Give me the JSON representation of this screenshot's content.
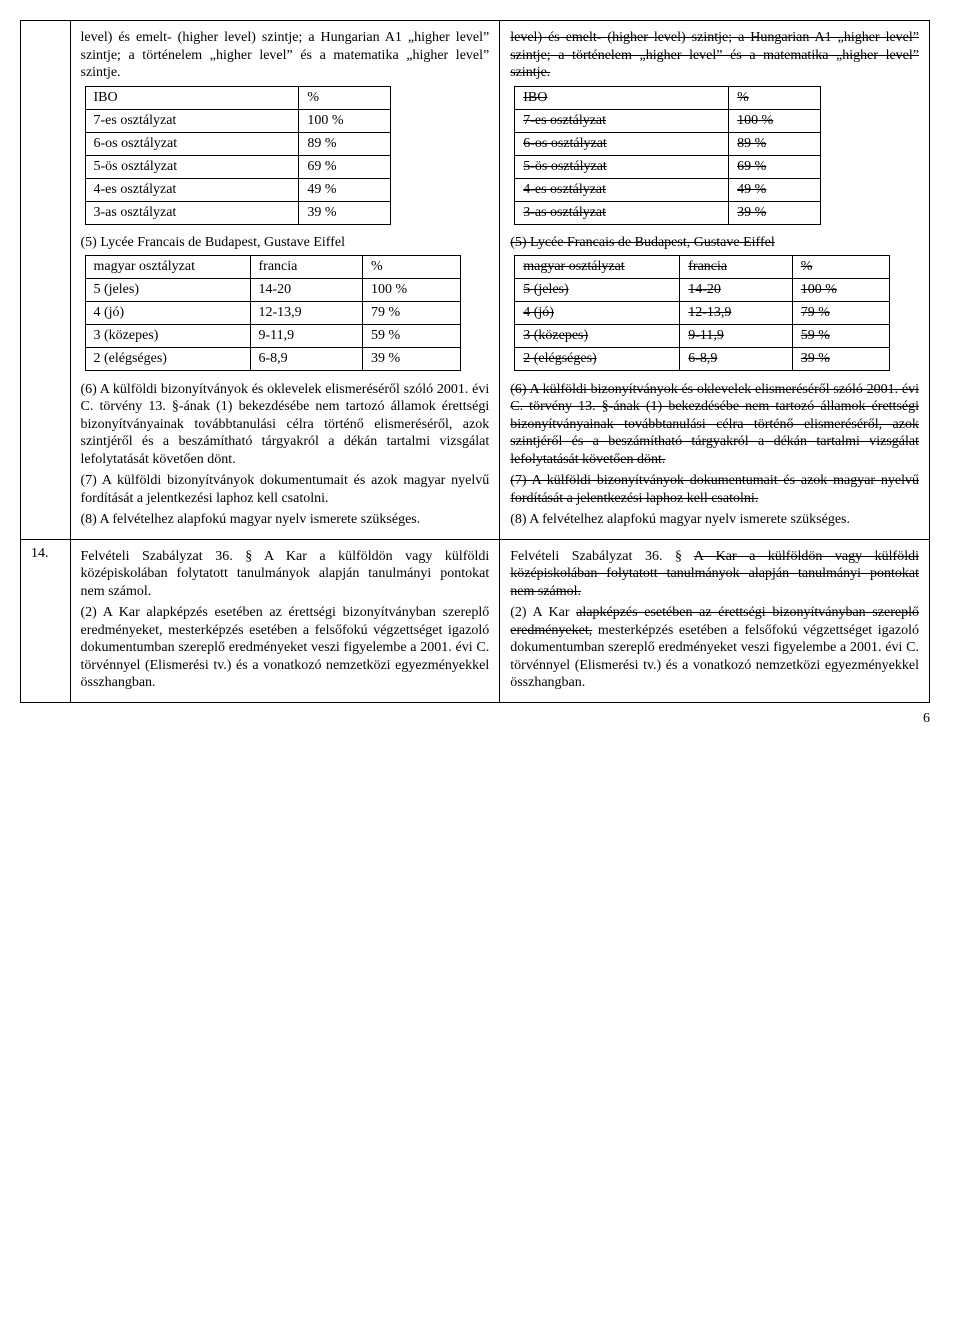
{
  "row1": {
    "para_intro": "level)  és emelt- (higher level) szintje; a Hungarian A1 „higher level” szintje; a történelem „higher level” és a matematika „higher level” szintje.",
    "ibo_rows": [
      [
        "IBO",
        "%"
      ],
      [
        "7-es osztályzat",
        "100 %"
      ],
      [
        "6-os osztályzat",
        "89 %"
      ],
      [
        "5-ös osztályzat",
        "69 %"
      ],
      [
        "4-es osztályzat",
        "49 %"
      ],
      [
        "3-as osztályzat",
        "39 %"
      ]
    ],
    "sect5_title": "(5) Lycée Francais de Budapest, Gustave Eiffel",
    "lycee_rows": [
      [
        "magyar osztályzat",
        "francia",
        "%"
      ],
      [
        "5 (jeles)",
        "14-20",
        "100 %"
      ],
      [
        "4 (jó)",
        "12-13,9",
        "79 %"
      ],
      [
        "3 (közepes)",
        "9-11,9",
        "59 %"
      ],
      [
        "2 (elégséges)",
        "6-8,9",
        "39 %"
      ]
    ],
    "para6": "(6) A külföldi bizonyítványok és oklevelek elismeréséről szóló 2001. évi C. törvény 13. §-ának (1) bekezdésébe nem tartozó államok érettségi bizonyítványainak továbbtanulási célra történő elismeréséről, azok szintjéről és a beszámítható tárgyakról a dékán tartalmi vizsgálat lefolytatását követően dönt.",
    "para7": "(7) A külföldi bizonyítványok dokumentumait és azok magyar nyelvű fordítását a jelentkezési laphoz kell csatolni.",
    "para8": "(8) A felvételhez alapfokú  magyar nyelv ismerete szükséges."
  },
  "row2": {
    "num": "14.",
    "left": {
      "p1": "Felvételi Szabályzat 36. § A Kar a külföldön vagy külföldi középiskolában folytatott tanulmányok alapján tanulmányi pontokat nem számol.",
      "p2": "(2) A Kar alapképzés esetében az érettségi bizonyítványban szereplő eredményeket, mesterképzés esetében a felsőfokú végzettséget igazoló dokumentumban szereplő eredményeket veszi figyelembe a 2001. évi C. törvénnyel (Elismerési tv.) és a vonatkozó nemzetközi egyezményekkel összhangban."
    },
    "right": {
      "p1_a": "Felvételi Szabályzat 36. § ",
      "p1_b_strike": "A Kar a külföldön vagy külföldi középiskolában folytatott tanulmányok alapján tanulmányi pontokat nem számol.",
      "p2_a": "(2) A Kar ",
      "p2_b_strike": "alapképzés esetében az érettségi bizonyítványban szereplő eredményeket,",
      "p2_c": " mesterképzés esetében a felsőfokú végzettséget igazoló dokumentumban szereplő eredményeket veszi figyelembe a 2001. évi C. törvénnyel (Elismerési tv.) és a vonatkozó nemzetközi egyezményekkel összhangban."
    }
  },
  "pagenum": "6"
}
